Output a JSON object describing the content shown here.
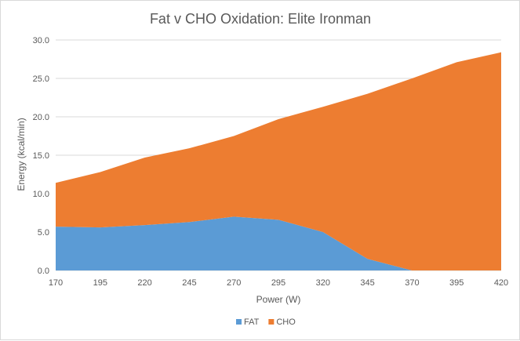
{
  "chart_data": {
    "type": "area",
    "stacked": true,
    "title": "Fat v CHO Oxidation: Elite Ironman",
    "xlabel": "Power (W)",
    "ylabel": "Energy (kcal/min)",
    "x": [
      170,
      195,
      220,
      245,
      270,
      295,
      320,
      345,
      370,
      395,
      420
    ],
    "x_tick_labels": [
      "170",
      "195",
      "220",
      "245",
      "270",
      "295",
      "320",
      "345",
      "370",
      "395",
      "420"
    ],
    "ylim": [
      0,
      30
    ],
    "y_ticks": [
      0,
      5,
      10,
      15,
      20,
      25,
      30
    ],
    "y_tick_labels": [
      "0.0",
      "5.0",
      "10.0",
      "15.0",
      "20.0",
      "25.0",
      "30.0"
    ],
    "grid": true,
    "legend_position": "bottom",
    "series": [
      {
        "name": "FAT",
        "color": "#5b9bd5",
        "values": [
          5.7,
          5.6,
          5.9,
          6.3,
          7.0,
          6.6,
          5.0,
          1.5,
          0.0,
          0.0,
          0.0
        ]
      },
      {
        "name": "CHO",
        "color": "#ed7d31",
        "values": [
          5.7,
          7.2,
          8.8,
          9.6,
          10.5,
          13.1,
          16.3,
          21.5,
          25.0,
          27.1,
          28.4
        ]
      }
    ]
  }
}
